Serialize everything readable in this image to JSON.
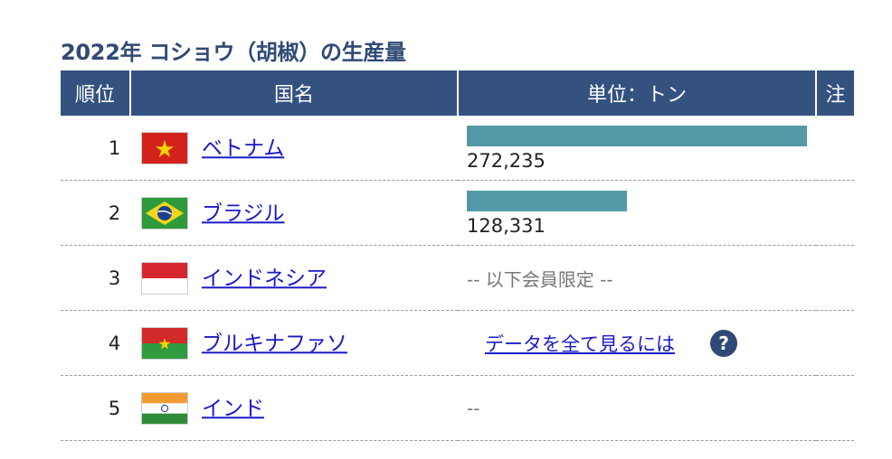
{
  "title": "2022年 コショウ（胡椒）の生産量",
  "headers": {
    "rank": "順位",
    "country": "国名",
    "unit": "単位：トン",
    "note": "注"
  },
  "rows": [
    {
      "rank": "1",
      "country": "ベトナム",
      "flag": "vietnam-flag-icon",
      "value": "272,235",
      "bar_fraction": 1.0
    },
    {
      "rank": "2",
      "country": "ブラジル",
      "flag": "brazil-flag-icon",
      "value": "128,331",
      "bar_fraction": 0.4714
    },
    {
      "rank": "3",
      "country": "インドネシア",
      "flag": "indonesia-flag-icon",
      "members_text": "-- 以下会員限定 --"
    },
    {
      "rank": "4",
      "country": "ブルキナファソ",
      "flag": "burkina-faso-flag-icon",
      "link_text": "データを全て見るには",
      "help_icon": "?"
    },
    {
      "rank": "5",
      "country": "インド",
      "flag": "india-flag-icon",
      "value_text": "--"
    }
  ],
  "colors": {
    "header_bg": "#34527f",
    "title": "#2f4a75",
    "bar": "#5499a7",
    "link": "#1a1ac8"
  }
}
